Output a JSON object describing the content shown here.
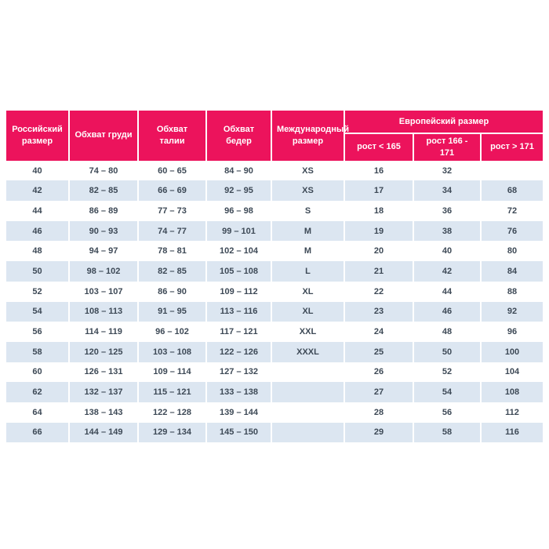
{
  "colors": {
    "header_bg": "#ec135c",
    "header_text": "#ffffff",
    "stripe_bg": "#dce6f1",
    "row_bg": "#ffffff",
    "body_text": "#3d4956",
    "divider": "#ffffff",
    "page_bg": "#ffffff"
  },
  "chart_data": {
    "type": "table",
    "title": "",
    "columns": [
      "Российский размер",
      "Обхват груди",
      "Обхват талии",
      "Обхват бедер",
      "Международный размер",
      "рост < 165",
      "рост 166 - 171",
      "рост > 171"
    ],
    "column_groups": [
      {
        "label": "Европейский размер",
        "spans": [
          "рост < 165",
          "рост 166 - 171",
          "рост > 171"
        ]
      }
    ],
    "rows": [
      [
        "40",
        "74 – 80",
        "60 – 65",
        "84 – 90",
        "XS",
        "16",
        "32",
        ""
      ],
      [
        "42",
        "82 – 85",
        "66 – 69",
        "92 – 95",
        "XS",
        "17",
        "34",
        "68"
      ],
      [
        "44",
        "86 – 89",
        "77 – 73",
        "96 – 98",
        "S",
        "18",
        "36",
        "72"
      ],
      [
        "46",
        "90 – 93",
        "74 – 77",
        "99 – 101",
        "M",
        "19",
        "38",
        "76"
      ],
      [
        "48",
        "94 – 97",
        "78 – 81",
        "102 – 104",
        "M",
        "20",
        "40",
        "80"
      ],
      [
        "50",
        "98 – 102",
        "82 – 85",
        "105 – 108",
        "L",
        "21",
        "42",
        "84"
      ],
      [
        "52",
        "103 – 107",
        "86 – 90",
        "109 – 112",
        "XL",
        "22",
        "44",
        "88"
      ],
      [
        "54",
        "108 – 113",
        "91 – 95",
        "113 – 116",
        "XL",
        "23",
        "46",
        "92"
      ],
      [
        "56",
        "114 – 119",
        "96 – 102",
        "117 – 121",
        "XXL",
        "24",
        "48",
        "96"
      ],
      [
        "58",
        "120 – 125",
        "103 – 108",
        "122 – 126",
        "XXXL",
        "25",
        "50",
        "100"
      ],
      [
        "60",
        "126 – 131",
        "109 – 114",
        "127 – 132",
        "",
        "26",
        "52",
        "104"
      ],
      [
        "62",
        "132 – 137",
        "115 – 121",
        "133 – 138",
        "",
        "27",
        "54",
        "108"
      ],
      [
        "64",
        "138 – 143",
        "122 – 128",
        "139 – 144",
        "",
        "28",
        "56",
        "112"
      ],
      [
        "66",
        "144 – 149",
        "129 – 134",
        "145 – 150",
        "",
        "29",
        "58",
        "116"
      ]
    ]
  }
}
